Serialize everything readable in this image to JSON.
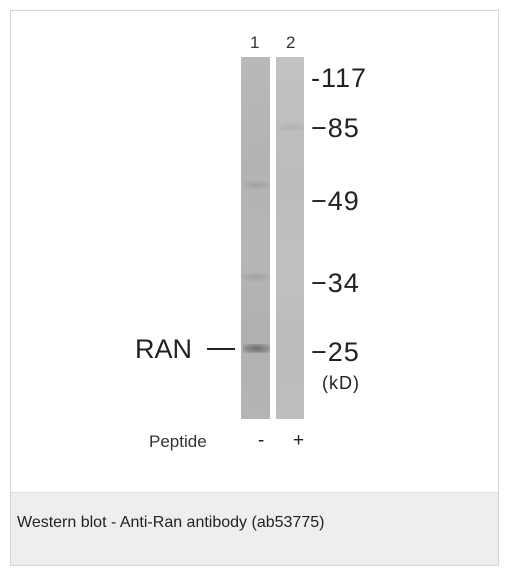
{
  "blot": {
    "lanes": [
      {
        "number": "1"
      },
      {
        "number": "2"
      }
    ],
    "markers": [
      "-117",
      "−85",
      "−49",
      "−34",
      "−25"
    ],
    "unit": "(kD)",
    "protein_label": "RAN",
    "peptide_label": "Peptide",
    "peptide_signs": [
      "-",
      "+"
    ]
  },
  "caption": "Western blot - Anti-Ran antibody (ab53775)"
}
